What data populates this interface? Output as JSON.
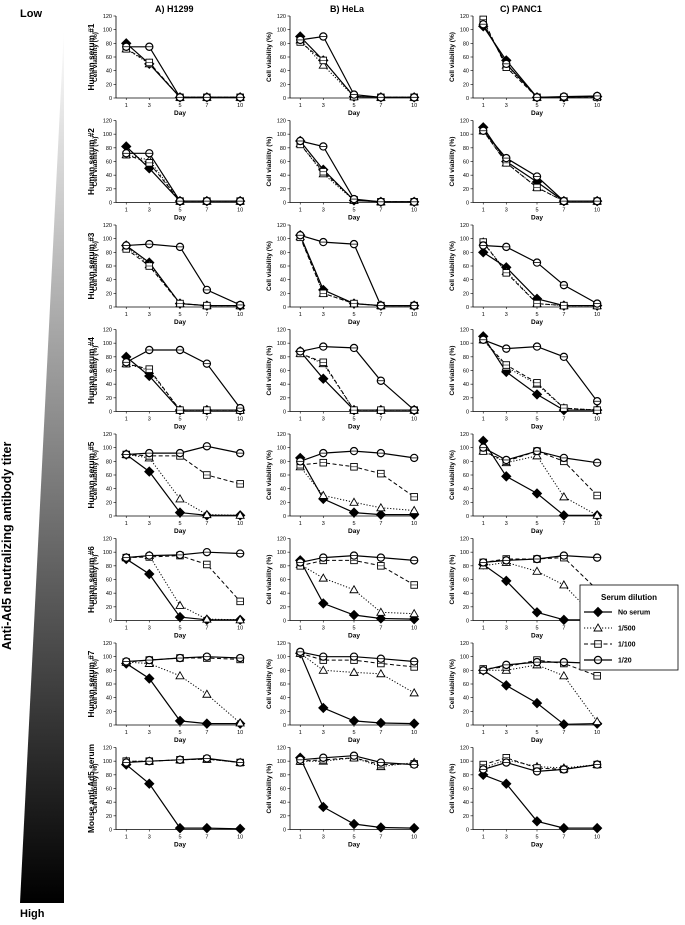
{
  "left_axis": {
    "top_label": "Low",
    "bottom_label": "High",
    "title": "Anti-Ad5 neutralizing antibody titer"
  },
  "column_titles": [
    "A) H1299",
    "B) HeLa",
    "C) PANC1"
  ],
  "row_labels": [
    "Human serum #1",
    "Human serum #2",
    "Human serum #3",
    "Human serum #4",
    "Human serum #5",
    "Human serum #6",
    "Human serum #7",
    "Mouse anti-Ad5 serum"
  ],
  "axis": {
    "xlabel": "Day",
    "ylabel": "Cell viability (%)",
    "xticks": [
      "1",
      "3",
      "5",
      "7",
      "10"
    ],
    "yticks": [
      "0",
      "20",
      "40",
      "60",
      "80",
      "100",
      "120"
    ],
    "ylim": [
      0,
      120
    ]
  },
  "legend": {
    "title": "Serum dilution",
    "entries": [
      "No serum",
      "1/500",
      "1/100",
      "1/20"
    ]
  },
  "chart_data": {
    "type": "line",
    "x": [
      1,
      3,
      5,
      7,
      10
    ],
    "series_names": [
      "No serum",
      "1/500",
      "1/100",
      "1/20"
    ],
    "panels": [
      [
        {
          "row": "Human serum #1",
          "cell_line": "H1299",
          "series": [
            [
              80,
              50,
              1,
              1,
              1
            ],
            [
              72,
              50,
              1,
              1,
              1
            ],
            [
              72,
              52,
              1,
              1,
              1
            ],
            [
              75,
              75,
              1,
              1,
              1
            ]
          ]
        },
        {
          "row": "Human serum #1",
          "cell_line": "HeLa",
          "series": [
            [
              90,
              55,
              2,
              1,
              1
            ],
            [
              85,
              48,
              2,
              1,
              1
            ],
            [
              82,
              55,
              2,
              1,
              1
            ],
            [
              85,
              90,
              5,
              1,
              1
            ]
          ]
        },
        {
          "row": "Human serum #1",
          "cell_line": "PANC1",
          "series": [
            [
              105,
              55,
              1,
              1,
              2
            ],
            [
              112,
              48,
              1,
              1,
              2
            ],
            [
              115,
              45,
              1,
              1,
              1
            ],
            [
              108,
              50,
              1,
              2,
              3
            ]
          ]
        }
      ],
      [
        {
          "row": "Human serum #2",
          "cell_line": "H1299",
          "series": [
            [
              82,
              50,
              2,
              2,
              2
            ],
            [
              70,
              62,
              2,
              2,
              2
            ],
            [
              70,
              58,
              2,
              2,
              2
            ],
            [
              72,
              72,
              2,
              2,
              2
            ]
          ]
        },
        {
          "row": "Human serum #2",
          "cell_line": "HeLa",
          "series": [
            [
              90,
              48,
              3,
              1,
              1
            ],
            [
              86,
              42,
              3,
              1,
              1
            ],
            [
              85,
              45,
              4,
              1,
              1
            ],
            [
              90,
              82,
              5,
              1,
              1
            ]
          ]
        },
        {
          "row": "Human serum #2",
          "cell_line": "PANC1",
          "series": [
            [
              110,
              60,
              30,
              2,
              2
            ],
            [
              105,
              58,
              22,
              2,
              2
            ],
            [
              105,
              58,
              22,
              2,
              2
            ],
            [
              105,
              65,
              38,
              2,
              2
            ]
          ]
        }
      ],
      [
        {
          "row": "Human serum #3",
          "cell_line": "H1299",
          "series": [
            [
              90,
              65,
              5,
              2,
              2
            ],
            [
              88,
              62,
              5,
              2,
              2
            ],
            [
              85,
              60,
              5,
              2,
              2
            ],
            [
              90,
              92,
              88,
              25,
              3
            ]
          ]
        },
        {
          "row": "Human serum #3",
          "cell_line": "HeLa",
          "series": [
            [
              105,
              25,
              5,
              2,
              2
            ],
            [
              103,
              20,
              5,
              2,
              2
            ],
            [
              102,
              20,
              5,
              2,
              2
            ],
            [
              105,
              95,
              92,
              2,
              2
            ]
          ]
        },
        {
          "row": "Human serum #3",
          "cell_line": "PANC1",
          "series": [
            [
              80,
              58,
              12,
              2,
              2
            ],
            [
              95,
              52,
              5,
              2,
              2
            ],
            [
              95,
              50,
              5,
              2,
              2
            ],
            [
              90,
              88,
              65,
              32,
              5
            ]
          ]
        }
      ],
      [
        {
          "row": "Human serum #4",
          "cell_line": "H1299",
          "series": [
            [
              80,
              52,
              2,
              2,
              2
            ],
            [
              70,
              60,
              2,
              2,
              2
            ],
            [
              70,
              62,
              2,
              2,
              2
            ],
            [
              72,
              90,
              90,
              70,
              5
            ]
          ]
        },
        {
          "row": "Human serum #4",
          "cell_line": "HeLa",
          "series": [
            [
              88,
              48,
              2,
              2,
              2
            ],
            [
              85,
              70,
              2,
              2,
              2
            ],
            [
              85,
              72,
              2,
              2,
              2
            ],
            [
              88,
              95,
              93,
              45,
              2
            ]
          ]
        },
        {
          "row": "Human serum #4",
          "cell_line": "PANC1",
          "series": [
            [
              110,
              58,
              25,
              2,
              2
            ],
            [
              105,
              65,
              40,
              5,
              2
            ],
            [
              105,
              68,
              42,
              5,
              2
            ],
            [
              105,
              92,
              95,
              80,
              15
            ]
          ]
        }
      ],
      [
        {
          "row": "Human serum #5",
          "cell_line": "H1299",
          "series": [
            [
              90,
              65,
              5,
              1,
              1
            ],
            [
              90,
              85,
              25,
              2,
              1
            ],
            [
              90,
              88,
              88,
              60,
              47
            ],
            [
              90,
              92,
              92,
              102,
              92
            ]
          ]
        },
        {
          "row": "Human serum #5",
          "cell_line": "HeLa",
          "series": [
            [
              85,
              25,
              5,
              2,
              2
            ],
            [
              72,
              30,
              20,
              12,
              8
            ],
            [
              75,
              78,
              72,
              62,
              28
            ],
            [
              80,
              92,
              95,
              92,
              85
            ]
          ]
        },
        {
          "row": "Human serum #5",
          "cell_line": "PANC1",
          "series": [
            [
              110,
              58,
              33,
              1,
              1
            ],
            [
              95,
              78,
              88,
              28,
              1
            ],
            [
              95,
              80,
              95,
              80,
              30
            ],
            [
              100,
              82,
              95,
              85,
              78
            ]
          ]
        }
      ],
      [
        {
          "row": "Human serum #6",
          "cell_line": "H1299",
          "series": [
            [
              90,
              68,
              5,
              1,
              1
            ],
            [
              92,
              95,
              22,
              2,
              1
            ],
            [
              92,
              93,
              95,
              82,
              28
            ],
            [
              92,
              95,
              96,
              100,
              98
            ]
          ]
        },
        {
          "row": "Human serum #6",
          "cell_line": "HeLa",
          "series": [
            [
              88,
              25,
              8,
              3,
              2
            ],
            [
              82,
              62,
              45,
              12,
              10
            ],
            [
              80,
              88,
              88,
              80,
              52
            ],
            [
              85,
              92,
              95,
              92,
              88
            ]
          ]
        },
        {
          "row": "Human serum #6",
          "cell_line": "PANC1",
          "series": [
            [
              82,
              58,
              12,
              1,
              1
            ],
            [
              80,
              85,
              72,
              52,
              2
            ],
            [
              85,
              90,
              90,
              92,
              45
            ],
            [
              85,
              88,
              90,
              95,
              92
            ]
          ]
        }
      ],
      [
        {
          "row": "Human serum #7",
          "cell_line": "H1299",
          "series": [
            [
              90,
              68,
              6,
              2,
              2
            ],
            [
              92,
              90,
              72,
              45,
              3
            ],
            [
              92,
              95,
              98,
              98,
              96
            ],
            [
              93,
              95,
              98,
              100,
              98
            ]
          ]
        },
        {
          "row": "Human serum #7",
          "cell_line": "HeLa",
          "series": [
            [
              105,
              25,
              6,
              3,
              2
            ],
            [
              105,
              80,
              77,
              75,
              47
            ],
            [
              105,
              95,
              95,
              90,
              85
            ],
            [
              107,
              100,
              100,
              97,
              93
            ]
          ]
        },
        {
          "row": "Human serum #7",
          "cell_line": "PANC1",
          "series": [
            [
              80,
              58,
              32,
              1,
              2
            ],
            [
              80,
              80,
              88,
              72,
              5
            ],
            [
              82,
              85,
              95,
              90,
              72
            ],
            [
              80,
              88,
              92,
              92,
              90
            ]
          ]
        }
      ],
      [
        {
          "row": "Mouse anti-Ad5 serum",
          "cell_line": "H1299",
          "series": [
            [
              95,
              67,
              2,
              2,
              1
            ],
            [
              100,
              100,
              102,
              103,
              98
            ],
            [
              100,
              100,
              102,
              103,
              98
            ],
            [
              98,
              100,
              102,
              104,
              98
            ]
          ]
        },
        {
          "row": "Mouse anti-Ad5 serum",
          "cell_line": "HeLa",
          "series": [
            [
              105,
              33,
              8,
              3,
              2
            ],
            [
              100,
              100,
              105,
              92,
              98
            ],
            [
              100,
              102,
              105,
              95,
              96
            ],
            [
              102,
              105,
              108,
              98,
              95
            ]
          ]
        },
        {
          "row": "Mouse anti-Ad5 serum",
          "cell_line": "PANC1",
          "series": [
            [
              80,
              67,
              12,
              2,
              2
            ],
            [
              90,
              102,
              92,
              90,
              95
            ],
            [
              95,
              105,
              90,
              88,
              95
            ],
            [
              88,
              98,
              85,
              88,
              95
            ]
          ]
        }
      ]
    ]
  }
}
